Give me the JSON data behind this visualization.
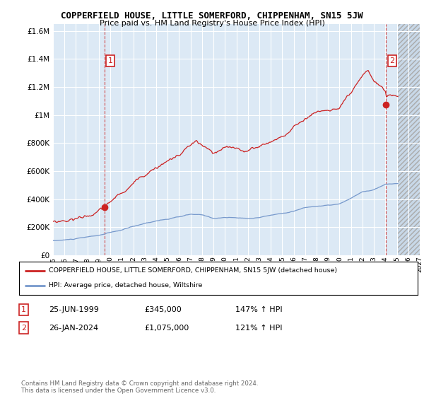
{
  "title": "COPPERFIELD HOUSE, LITTLE SOMERFORD, CHIPPENHAM, SN15 5JW",
  "subtitle": "Price paid vs. HM Land Registry's House Price Index (HPI)",
  "background_color": "#ffffff",
  "plot_bg_color": "#dce9f5",
  "grid_color": "#ffffff",
  "hatch_bg_color": "#c8d8e8",
  "legend_label_red": "COPPERFIELD HOUSE, LITTLE SOMERFORD, CHIPPENHAM, SN15 5JW (detached house)",
  "legend_label_blue": "HPI: Average price, detached house, Wiltshire",
  "footnote": "Contains HM Land Registry data © Crown copyright and database right 2024.\nThis data is licensed under the Open Government Licence v3.0.",
  "sale1_date": "25-JUN-1999",
  "sale1_price": "£345,000",
  "sale1_hpi": "147% ↑ HPI",
  "sale2_date": "26-JAN-2024",
  "sale2_price": "£1,075,000",
  "sale2_hpi": "121% ↑ HPI",
  "red_line_color": "#cc2222",
  "blue_line_color": "#7799cc",
  "marker1_x": 1999.49,
  "marker1_y": 345000,
  "marker2_x": 2024.07,
  "marker2_y": 1075000,
  "vline1_x": 1999.49,
  "vline2_x": 2024.07,
  "ylim": [
    0,
    1650000
  ],
  "ytick_values": [
    0,
    200000,
    400000,
    600000,
    800000,
    1000000,
    1200000,
    1400000,
    1600000
  ],
  "xlim": [
    1995,
    2027
  ],
  "hatch_start_x": 2025,
  "xticks": [
    1995,
    1996,
    1997,
    1998,
    1999,
    2000,
    2001,
    2002,
    2003,
    2004,
    2005,
    2006,
    2007,
    2008,
    2009,
    2010,
    2011,
    2012,
    2013,
    2014,
    2015,
    2016,
    2017,
    2018,
    2019,
    2020,
    2021,
    2022,
    2023,
    2024,
    2025,
    2026,
    2027
  ]
}
